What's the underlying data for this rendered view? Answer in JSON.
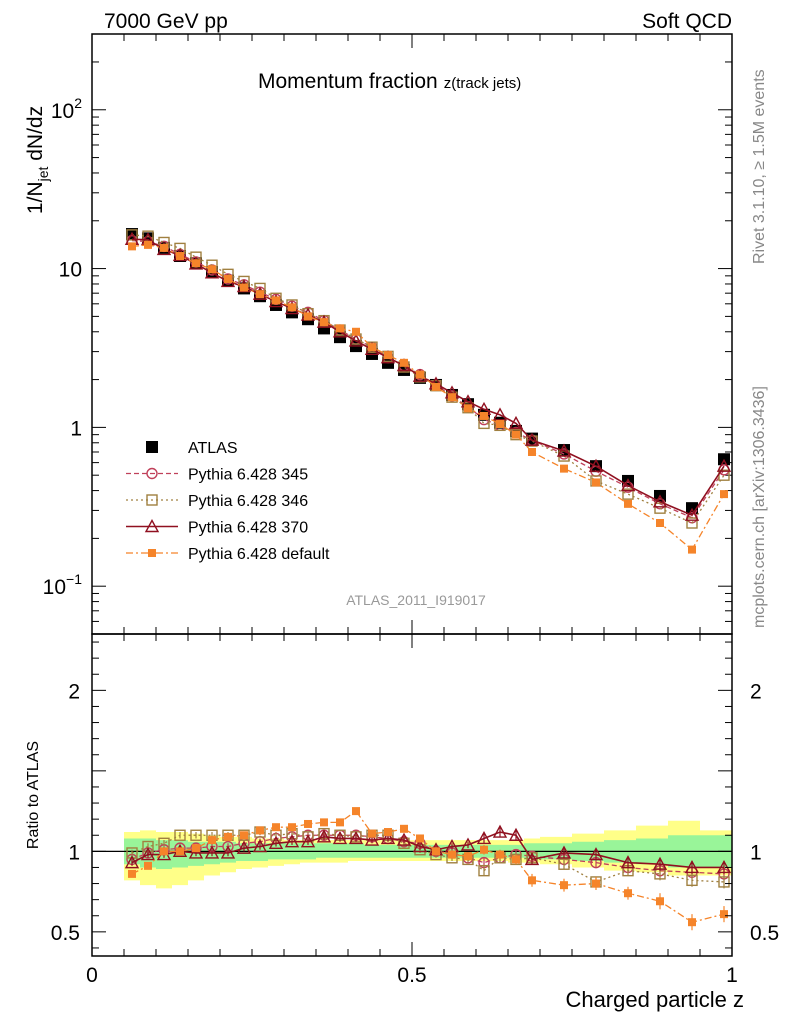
{
  "header": {
    "left": "7000 GeV pp",
    "right": "Soft QCD"
  },
  "side_labels": {
    "rivet": "Rivet 3.1.10, ≥ 1.5M events",
    "mcplots": "mcplots.cern.ch [arXiv:1306.3436]"
  },
  "colors": {
    "atlas": "#000000",
    "p345": "#c0405a",
    "p346": "#a08040",
    "p370": "#901020",
    "pdefault": "#f5842a",
    "band_inner": "#99f599",
    "band_outer": "#ffff88"
  },
  "chart_data": [
    {
      "type": "scatter",
      "panel": "main",
      "title": "Momentum fraction",
      "title_sub": "z(track jets)",
      "watermark": "ATLAS_2011_I919017",
      "xlabel": "Charged particle z",
      "ylabel": "1/N_jet dN/dz",
      "ylabel_parts": {
        "a": "1/N",
        "sub": "jet",
        "b": " dN/dz"
      },
      "xlim": [
        0,
        1
      ],
      "ylim": [
        0.05,
        300
      ],
      "yscale": "log",
      "yticks": [
        {
          "v": 0.1,
          "base": "10",
          "exp": "−1"
        },
        {
          "v": 1,
          "base": "1",
          "exp": ""
        },
        {
          "v": 10,
          "base": "10",
          "exp": ""
        },
        {
          "v": 100,
          "base": "10",
          "exp": "2"
        }
      ],
      "legend_position": "bottom-left",
      "x": [
        0.0625,
        0.0875,
        0.1125,
        0.1375,
        0.1625,
        0.1875,
        0.2125,
        0.2375,
        0.2625,
        0.2875,
        0.3125,
        0.3375,
        0.3625,
        0.3875,
        0.4125,
        0.4375,
        0.4625,
        0.4875,
        0.5125,
        0.5375,
        0.5625,
        0.5875,
        0.6125,
        0.6375,
        0.6625,
        0.6875,
        0.7375,
        0.7875,
        0.8375,
        0.8875,
        0.9375,
        0.9875
      ],
      "series": [
        {
          "name": "ATLAS",
          "marker": "square-filled",
          "style": "none",
          "values": [
            16.5,
            15.5,
            13.5,
            12.0,
            10.8,
            9.5,
            8.4,
            7.5,
            6.7,
            5.9,
            5.3,
            4.8,
            4.2,
            3.7,
            3.25,
            2.9,
            2.55,
            2.3,
            2.05,
            1.85,
            1.6,
            1.4,
            1.2,
            1.07,
            0.95,
            0.85,
            0.72,
            0.57,
            0.46,
            0.37,
            0.31,
            0.63
          ]
        },
        {
          "name": "Pythia 6.428 345",
          "marker": "circle-open",
          "style": "dashed",
          "values": [
            15.0,
            14.8,
            13.8,
            12.3,
            11.0,
            9.8,
            8.6,
            7.9,
            7.1,
            6.4,
            5.8,
            5.3,
            4.7,
            4.1,
            3.6,
            3.2,
            2.75,
            2.45,
            2.15,
            1.85,
            1.58,
            1.35,
            1.12,
            1.03,
            0.93,
            0.83,
            0.68,
            0.53,
            0.42,
            0.33,
            0.27,
            0.54
          ]
        },
        {
          "name": "Pythia 6.428 346",
          "marker": "square-open",
          "style": "dotted",
          "values": [
            16.3,
            16.0,
            14.6,
            13.4,
            11.8,
            10.5,
            9.2,
            8.3,
            7.5,
            6.5,
            5.9,
            5.2,
            4.7,
            4.1,
            3.6,
            3.2,
            2.8,
            2.4,
            2.08,
            1.83,
            1.55,
            1.33,
            1.06,
            1.03,
            0.9,
            0.82,
            0.66,
            0.46,
            0.38,
            0.31,
            0.25,
            0.5
          ]
        },
        {
          "name": "Pythia 6.428 370",
          "marker": "triangle-open",
          "style": "solid",
          "values": [
            15.3,
            15.2,
            13.2,
            12.1,
            10.7,
            9.4,
            8.3,
            7.7,
            6.9,
            6.2,
            5.6,
            5.1,
            4.6,
            4.0,
            3.5,
            3.1,
            2.75,
            2.45,
            2.1,
            1.88,
            1.65,
            1.45,
            1.3,
            1.2,
            1.06,
            0.83,
            0.71,
            0.57,
            0.43,
            0.34,
            0.28,
            0.57
          ]
        },
        {
          "name": "Pythia 6.428 default",
          "marker": "square-filled-small",
          "style": "dashdot",
          "values": [
            13.8,
            14.1,
            13.5,
            12.0,
            10.8,
            9.9,
            8.6,
            7.6,
            6.9,
            6.3,
            5.7,
            5.0,
            4.6,
            4.2,
            4.0,
            3.2,
            2.85,
            2.55,
            2.15,
            1.8,
            1.55,
            1.32,
            1.18,
            1.05,
            0.9,
            0.7,
            0.55,
            0.45,
            0.33,
            0.25,
            0.17,
            0.38
          ]
        }
      ]
    },
    {
      "type": "scatter",
      "panel": "ratio",
      "ylabel": "Ratio to ATLAS",
      "xlabel": "Charged particle z",
      "xlim": [
        0,
        1
      ],
      "ylim": [
        0.35,
        2.35
      ],
      "xticks": [
        {
          "v": 0,
          "label": "0"
        },
        {
          "v": 0.5,
          "label": "0.5"
        },
        {
          "v": 1,
          "label": "1"
        }
      ],
      "yticks": [
        {
          "v": 0.5,
          "label": "0.5"
        },
        {
          "v": 1,
          "label": "1"
        },
        {
          "v": 2,
          "label": "2"
        }
      ],
      "band_x_edges": [
        0.05,
        0.075,
        0.1,
        0.125,
        0.15,
        0.175,
        0.2,
        0.225,
        0.25,
        0.275,
        0.3,
        0.325,
        0.35,
        0.375,
        0.4,
        0.425,
        0.45,
        0.475,
        0.5,
        0.525,
        0.55,
        0.575,
        0.6,
        0.625,
        0.65,
        0.675,
        0.7,
        0.75,
        0.8,
        0.85,
        0.9,
        0.95,
        1.0
      ],
      "band_inner": {
        "low": [
          0.92,
          0.9,
          0.89,
          0.9,
          0.91,
          0.92,
          0.93,
          0.94,
          0.94,
          0.95,
          0.95,
          0.95,
          0.96,
          0.96,
          0.96,
          0.96,
          0.96,
          0.96,
          0.96,
          0.96,
          0.96,
          0.96,
          0.96,
          0.96,
          0.96,
          0.95,
          0.95,
          0.94,
          0.93,
          0.92,
          0.9,
          0.9
        ],
        "high": [
          1.08,
          1.08,
          1.07,
          1.07,
          1.06,
          1.06,
          1.06,
          1.05,
          1.05,
          1.05,
          1.05,
          1.05,
          1.05,
          1.05,
          1.05,
          1.04,
          1.04,
          1.04,
          1.04,
          1.04,
          1.04,
          1.04,
          1.04,
          1.04,
          1.04,
          1.05,
          1.05,
          1.06,
          1.07,
          1.08,
          1.1,
          1.1
        ]
      },
      "band_outer": {
        "low": [
          0.82,
          0.79,
          0.77,
          0.79,
          0.82,
          0.85,
          0.87,
          0.89,
          0.9,
          0.91,
          0.92,
          0.93,
          0.93,
          0.93,
          0.94,
          0.94,
          0.94,
          0.94,
          0.94,
          0.94,
          0.94,
          0.94,
          0.94,
          0.94,
          0.93,
          0.93,
          0.92,
          0.9,
          0.88,
          0.87,
          0.85,
          0.85
        ],
        "high": [
          1.12,
          1.13,
          1.12,
          1.12,
          1.11,
          1.1,
          1.09,
          1.09,
          1.08,
          1.08,
          1.07,
          1.07,
          1.07,
          1.07,
          1.07,
          1.07,
          1.07,
          1.07,
          1.07,
          1.07,
          1.07,
          1.07,
          1.07,
          1.07,
          1.07,
          1.08,
          1.09,
          1.11,
          1.13,
          1.16,
          1.19,
          1.13
        ]
      },
      "x": [
        0.0625,
        0.0875,
        0.1125,
        0.1375,
        0.1625,
        0.1875,
        0.2125,
        0.2375,
        0.2625,
        0.2875,
        0.3125,
        0.3375,
        0.3625,
        0.3875,
        0.4125,
        0.4375,
        0.4625,
        0.4875,
        0.5125,
        0.5375,
        0.5625,
        0.5875,
        0.6125,
        0.6375,
        0.6625,
        0.6875,
        0.7375,
        0.7875,
        0.8375,
        0.8875,
        0.9375,
        0.9875
      ],
      "series": [
        {
          "name": "Pythia 6.428 345",
          "values": [
            0.95,
            0.99,
            1.01,
            1.02,
            1.02,
            1.03,
            1.03,
            1.05,
            1.06,
            1.08,
            1.09,
            1.1,
            1.1,
            1.1,
            1.1,
            1.09,
            1.08,
            1.06,
            1.05,
            1.0,
            0.99,
            0.96,
            0.93,
            0.96,
            0.98,
            0.97,
            0.95,
            0.93,
            0.9,
            0.88,
            0.87,
            0.86
          ],
          "err": [
            0.02,
            0.02,
            0.02,
            0.02,
            0.02,
            0.02,
            0.02,
            0.02,
            0.02,
            0.02,
            0.02,
            0.02,
            0.02,
            0.02,
            0.02,
            0.02,
            0.02,
            0.02,
            0.02,
            0.02,
            0.02,
            0.02,
            0.03,
            0.03,
            0.03,
            0.03,
            0.03,
            0.03,
            0.03,
            0.04,
            0.04,
            0.04
          ]
        },
        {
          "name": "Pythia 6.428 346",
          "values": [
            0.99,
            1.03,
            1.05,
            1.1,
            1.1,
            1.1,
            1.1,
            1.1,
            1.12,
            1.1,
            1.11,
            1.09,
            1.11,
            1.1,
            1.09,
            1.1,
            1.1,
            1.05,
            1.01,
            0.98,
            0.96,
            0.95,
            0.88,
            0.96,
            0.95,
            0.96,
            0.92,
            0.81,
            0.88,
            0.86,
            0.82,
            0.81
          ],
          "err": [
            0.02,
            0.02,
            0.02,
            0.02,
            0.02,
            0.02,
            0.02,
            0.02,
            0.02,
            0.02,
            0.02,
            0.02,
            0.02,
            0.02,
            0.02,
            0.02,
            0.02,
            0.02,
            0.02,
            0.02,
            0.02,
            0.02,
            0.03,
            0.03,
            0.03,
            0.03,
            0.03,
            0.03,
            0.03,
            0.04,
            0.04,
            0.04
          ]
        },
        {
          "name": "Pythia 6.428 370",
          "values": [
            0.93,
            0.98,
            0.98,
            1.0,
            0.99,
            0.99,
            0.99,
            1.02,
            1.03,
            1.05,
            1.06,
            1.06,
            1.09,
            1.08,
            1.08,
            1.07,
            1.08,
            1.07,
            1.03,
            1.01,
            1.03,
            1.04,
            1.08,
            1.12,
            1.1,
            0.95,
            0.99,
            0.98,
            0.93,
            0.92,
            0.9,
            0.9
          ],
          "err": [
            0.02,
            0.02,
            0.02,
            0.02,
            0.02,
            0.02,
            0.02,
            0.02,
            0.02,
            0.02,
            0.02,
            0.02,
            0.02,
            0.02,
            0.02,
            0.02,
            0.02,
            0.02,
            0.02,
            0.02,
            0.02,
            0.02,
            0.03,
            0.03,
            0.03,
            0.03,
            0.03,
            0.03,
            0.03,
            0.04,
            0.04,
            0.04
          ]
        },
        {
          "name": "Pythia 6.428 default",
          "values": [
            0.86,
            0.91,
            1.0,
            1.0,
            1.02,
            1.07,
            1.09,
            1.1,
            1.13,
            1.15,
            1.15,
            1.17,
            1.18,
            1.18,
            1.25,
            1.11,
            1.12,
            1.14,
            1.08,
            1.0,
            0.98,
            0.97,
            1.01,
            0.98,
            0.95,
            0.82,
            0.79,
            0.8,
            0.74,
            0.69,
            0.56,
            0.61
          ],
          "err": [
            0.02,
            0.02,
            0.02,
            0.02,
            0.02,
            0.02,
            0.02,
            0.02,
            0.02,
            0.02,
            0.02,
            0.02,
            0.02,
            0.02,
            0.02,
            0.02,
            0.02,
            0.02,
            0.02,
            0.02,
            0.02,
            0.02,
            0.03,
            0.03,
            0.03,
            0.04,
            0.04,
            0.04,
            0.04,
            0.05,
            0.05,
            0.05
          ]
        }
      ]
    }
  ]
}
